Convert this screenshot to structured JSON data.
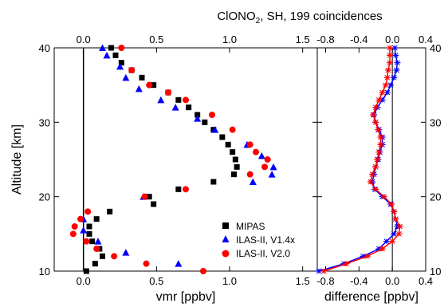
{
  "title": {
    "prefix": "ClONO",
    "subscript": "2",
    "suffix": ", SH, 199 coincidences"
  },
  "chart_data": [
    {
      "type": "scatter",
      "ylabel": "Altitude [km]",
      "xlabel": "vmr [ppbv]",
      "xlim": [
        -0.2,
        1.6
      ],
      "ylim": [
        10,
        40
      ],
      "x_ticks": [
        {
          "value": 0.0,
          "label": "0.0"
        },
        {
          "value": 0.5,
          "label": "0.5"
        },
        {
          "value": 1.0,
          "label": "1.0"
        },
        {
          "value": 1.5,
          "label": "1.5"
        }
      ],
      "y_ticks": [
        {
          "value": 10,
          "label": "10"
        },
        {
          "value": 20,
          "label": "20"
        },
        {
          "value": 30,
          "label": "30"
        },
        {
          "value": 40,
          "label": "40"
        }
      ],
      "grid": false,
      "reference_line_x": 0,
      "legend_position": "bottom-right",
      "series": [
        {
          "name": "MIPAS",
          "marker": "square",
          "color": "#000000",
          "points": [
            [
              0.02,
              10
            ],
            [
              0.08,
              11
            ],
            [
              0.13,
              12
            ],
            [
              0.11,
              13
            ],
            [
              0.06,
              14
            ],
            [
              0.04,
              15
            ],
            [
              0.04,
              16
            ],
            [
              0.09,
              17
            ],
            [
              0.18,
              18
            ],
            [
              0.48,
              19
            ],
            [
              0.45,
              20
            ],
            [
              0.65,
              21
            ],
            [
              0.89,
              22
            ],
            [
              1.03,
              23
            ],
            [
              1.05,
              24
            ],
            [
              1.04,
              25
            ],
            [
              1.02,
              26
            ],
            [
              0.99,
              27
            ],
            [
              0.95,
              28
            ],
            [
              0.89,
              29
            ],
            [
              0.83,
              30
            ],
            [
              0.78,
              31
            ],
            [
              0.72,
              32
            ],
            [
              0.65,
              33
            ],
            [
              0.58,
              34
            ],
            [
              0.48,
              35
            ],
            [
              0.4,
              36
            ],
            [
              0.33,
              37
            ],
            [
              0.26,
              38
            ],
            [
              0.22,
              39
            ],
            [
              0.19,
              40
            ]
          ]
        },
        {
          "name": "ILAS-II, V1.4x",
          "marker": "triangle",
          "color": "#0000ff",
          "points": [
            [
              0.65,
              11
            ],
            [
              0.29,
              12.5
            ],
            [
              0.1,
              14
            ],
            [
              0.0,
              15.5
            ],
            [
              0.0,
              17
            ],
            [
              0.41,
              20
            ],
            [
              1.16,
              22
            ],
            [
              1.29,
              23
            ],
            [
              1.3,
              24
            ],
            [
              1.22,
              25.5
            ],
            [
              1.12,
              27
            ],
            [
              0.9,
              29
            ],
            [
              0.78,
              30.5
            ],
            [
              0.63,
              32
            ],
            [
              0.53,
              33
            ],
            [
              0.38,
              34.5
            ],
            [
              0.29,
              36
            ],
            [
              0.25,
              37.5
            ],
            [
              0.16,
              39
            ],
            [
              0.13,
              40
            ]
          ]
        },
        {
          "name": "ILAS-II, V2.0",
          "marker": "circle",
          "color": "#ff0000",
          "points": [
            [
              0.82,
              10
            ],
            [
              0.43,
              11
            ],
            [
              0.21,
              12
            ],
            [
              0.09,
              13
            ],
            [
              0.02,
              14
            ],
            [
              -0.07,
              15
            ],
            [
              -0.06,
              16
            ],
            [
              -0.02,
              17
            ],
            [
              0.03,
              18
            ],
            [
              0.42,
              20
            ],
            [
              0.7,
              21
            ],
            [
              1.14,
              23
            ],
            [
              1.24,
              24
            ],
            [
              1.26,
              25
            ],
            [
              1.18,
              26
            ],
            [
              1.14,
              27
            ],
            [
              1.02,
              29
            ],
            [
              0.88,
              31
            ],
            [
              0.7,
              33
            ],
            [
              0.58,
              34
            ],
            [
              0.45,
              35
            ],
            [
              0.33,
              37
            ],
            [
              0.26,
              40
            ]
          ]
        }
      ]
    },
    {
      "type": "line",
      "xlabel": "difference [ppbv]",
      "xlim": [
        -0.9,
        0.4
      ],
      "ylim": [
        10,
        40
      ],
      "x_ticks": [
        {
          "value": -0.8,
          "label": "-0.8"
        },
        {
          "value": -0.4,
          "label": "-0.4"
        },
        {
          "value": 0.0,
          "label": "0.0"
        },
        {
          "value": 0.4,
          "label": "0.4"
        }
      ],
      "y_ticks": [
        {
          "value": 10,
          "label": "10"
        },
        {
          "value": 20,
          "label": "20"
        },
        {
          "value": 30,
          "label": "30"
        },
        {
          "value": 40,
          "label": "40"
        }
      ],
      "reference_line_x": 0,
      "series": [
        {
          "name": "ILAS-II, V1.4x",
          "color": "#0000ff",
          "marker": "star",
          "points": [
            [
              -0.88,
              10
            ],
            [
              -0.58,
              11
            ],
            [
              -0.35,
              12
            ],
            [
              -0.16,
              13
            ],
            [
              -0.07,
              14
            ],
            [
              0.02,
              15
            ],
            [
              0.06,
              16
            ],
            [
              0.04,
              17
            ],
            [
              0.02,
              18
            ],
            [
              -0.02,
              19
            ],
            [
              -0.12,
              20
            ],
            [
              -0.21,
              21
            ],
            [
              -0.24,
              22
            ],
            [
              -0.22,
              23
            ],
            [
              -0.2,
              24
            ],
            [
              -0.17,
              25
            ],
            [
              -0.15,
              26
            ],
            [
              -0.12,
              27
            ],
            [
              -0.12,
              28
            ],
            [
              -0.16,
              29
            ],
            [
              -0.2,
              30
            ],
            [
              -0.22,
              31
            ],
            [
              -0.18,
              32
            ],
            [
              -0.12,
              33
            ],
            [
              -0.06,
              34
            ],
            [
              -0.02,
              35
            ],
            [
              0.02,
              36
            ],
            [
              0.05,
              37
            ],
            [
              0.06,
              38
            ],
            [
              0.04,
              39
            ],
            [
              0.03,
              40
            ]
          ]
        },
        {
          "name": "ILAS-II, V2.0",
          "color": "#ff0000",
          "marker": "star",
          "points": [
            [
              -0.82,
              10
            ],
            [
              -0.55,
              11
            ],
            [
              -0.3,
              12
            ],
            [
              -0.12,
              13
            ],
            [
              0.0,
              14
            ],
            [
              0.08,
              15
            ],
            [
              0.09,
              16
            ],
            [
              0.04,
              17
            ],
            [
              0.02,
              18
            ],
            [
              -0.01,
              19
            ],
            [
              -0.1,
              20
            ],
            [
              -0.2,
              21
            ],
            [
              -0.26,
              22
            ],
            [
              -0.24,
              23
            ],
            [
              -0.2,
              24
            ],
            [
              -0.18,
              25
            ],
            [
              -0.16,
              26
            ],
            [
              -0.14,
              27
            ],
            [
              -0.14,
              28
            ],
            [
              -0.17,
              29
            ],
            [
              -0.2,
              30
            ],
            [
              -0.23,
              31
            ],
            [
              -0.2,
              32
            ],
            [
              -0.16,
              33
            ],
            [
              -0.12,
              34
            ],
            [
              -0.08,
              35
            ],
            [
              -0.06,
              36
            ],
            [
              -0.05,
              37
            ],
            [
              -0.03,
              38
            ],
            [
              -0.03,
              39
            ],
            [
              -0.03,
              40
            ]
          ]
        }
      ]
    }
  ]
}
